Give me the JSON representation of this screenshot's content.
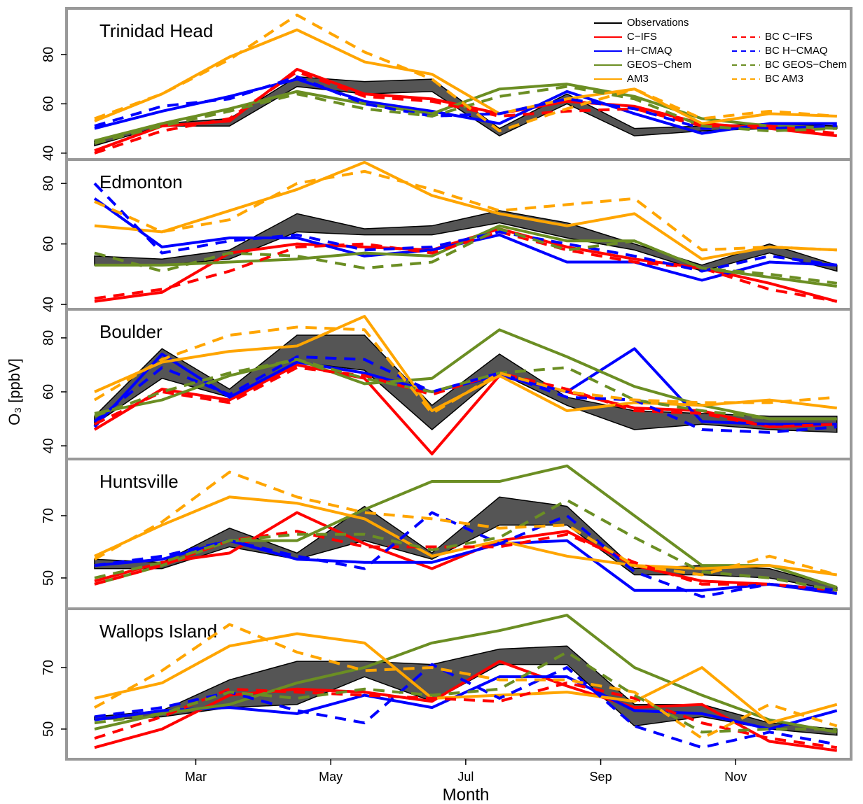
{
  "chart_data": {
    "type": "line",
    "xlabel": "Month",
    "ylabel": "O₃ [ppbV]",
    "x": [
      0.5,
      1.5,
      2.5,
      3.5,
      4.5,
      5.5,
      6.5,
      7.5,
      8.5,
      9.5,
      10.5,
      11.5
    ],
    "xlim": [
      0.085,
      11.71
    ],
    "xticks": [
      {
        "value": 2,
        "label": "Mar"
      },
      {
        "value": 4,
        "label": "May"
      },
      {
        "value": 6,
        "label": "Jul"
      },
      {
        "value": 8,
        "label": "Sep"
      },
      {
        "value": 10,
        "label": "Nov"
      }
    ],
    "legend": "top right",
    "observations": {
      "name": "Observations",
      "color": "#000000",
      "band_color": "#555555"
    },
    "series": [
      {
        "name": "C−IFS",
        "color": "#ff0000",
        "dashed": false
      },
      {
        "name": "H−CMAQ",
        "color": "#0000ff",
        "dashed": false
      },
      {
        "name": "GEOS−Chem",
        "color": "#6b8e23",
        "dashed": false
      },
      {
        "name": "AM3",
        "color": "#ffa500",
        "dashed": false
      },
      {
        "name": "BC C−IFS",
        "color": "#ff0000",
        "dashed": true
      },
      {
        "name": "BC H−CMAQ",
        "color": "#0000ff",
        "dashed": true
      },
      {
        "name": "BC GEOS−Chem",
        "color": "#6b8e23",
        "dashed": true
      },
      {
        "name": "BC AM3",
        "color": "#ffa500",
        "dashed": true
      }
    ],
    "panels": [
      {
        "title": "Trinidad Head",
        "ylim": [
          37.4,
          98.7
        ],
        "yticks": [
          40,
          60,
          80
        ],
        "obs_lower": [
          43,
          51,
          51,
          67,
          64,
          65,
          47,
          60,
          47,
          49,
          50,
          50
        ],
        "obs_upper": [
          45,
          52,
          54,
          71,
          69,
          70,
          50,
          64,
          50,
          51,
          52,
          51
        ],
        "values": [
          [
            41,
            51,
            53,
            74,
            64,
            62,
            56,
            61,
            59,
            52,
            50,
            47
          ],
          [
            50,
            57,
            63,
            70,
            61,
            57,
            52,
            65,
            56,
            48,
            52,
            52
          ],
          [
            45,
            52,
            58,
            65,
            60,
            56,
            66,
            68,
            63,
            54,
            51,
            50
          ],
          [
            53,
            64,
            79,
            90,
            77,
            72,
            56,
            62,
            66,
            52,
            56,
            55
          ],
          [
            40,
            49,
            54,
            73,
            63,
            61,
            55,
            57,
            58,
            51,
            51,
            48
          ],
          [
            51,
            59,
            62,
            71,
            60,
            55,
            56,
            62,
            58,
            50,
            50,
            51
          ],
          [
            44,
            51,
            57,
            64,
            58,
            55,
            63,
            67,
            62,
            51,
            49,
            50
          ],
          [
            54,
            64,
            78,
            96,
            81,
            70,
            49,
            58,
            66,
            54,
            57,
            55
          ]
        ]
      },
      {
        "title": "Edmonton",
        "ylim": [
          38.4,
          87.9
        ],
        "yticks": [
          40,
          60,
          80
        ],
        "obs_lower": [
          53,
          53,
          55,
          64,
          63,
          63,
          67,
          62,
          58,
          51,
          57,
          51
        ],
        "obs_upper": [
          56,
          55,
          58,
          70,
          65,
          66,
          71,
          67,
          60,
          53,
          60,
          53
        ],
        "values": [
          [
            41,
            44,
            57,
            60,
            59,
            58,
            65,
            59,
            55,
            52,
            47,
            41
          ],
          [
            75,
            59,
            62,
            62,
            56,
            58,
            63,
            54,
            54,
            48,
            54,
            53
          ],
          [
            53,
            53,
            54,
            55,
            57,
            56,
            66,
            61,
            61,
            52,
            49,
            46
          ],
          [
            66,
            64,
            71,
            78,
            87,
            76,
            70,
            66,
            70,
            55,
            59,
            58
          ],
          [
            42,
            45,
            51,
            59,
            60,
            57,
            64,
            58,
            54,
            52,
            45,
            41
          ],
          [
            80,
            57,
            61,
            63,
            58,
            59,
            64,
            60,
            56,
            51,
            56,
            53
          ],
          [
            57,
            51,
            57,
            56,
            52,
            54,
            65,
            58,
            61,
            52,
            50,
            47
          ],
          [
            74,
            64,
            68,
            80,
            84,
            78,
            71,
            73,
            75,
            58,
            59,
            58
          ]
        ]
      },
      {
        "title": "Boulder",
        "ylim": [
          35.1,
          90.6
        ],
        "yticks": [
          40,
          60,
          80
        ],
        "obs_lower": [
          48,
          65,
          58,
          71,
          68,
          46,
          67,
          55,
          46,
          48,
          46,
          45
        ],
        "obs_upper": [
          51,
          76,
          61,
          81,
          81,
          55,
          74,
          58,
          53,
          52,
          51,
          51
        ],
        "values": [
          [
            46,
            61,
            57,
            70,
            65,
            37,
            66,
            60,
            54,
            53,
            47,
            48
          ],
          [
            47,
            74,
            58,
            71,
            67,
            60,
            66,
            60,
            76,
            49,
            48,
            48
          ],
          [
            52,
            57,
            66,
            72,
            63,
            65,
            83,
            73,
            62,
            55,
            50,
            50
          ],
          [
            60,
            71,
            75,
            77,
            88,
            53,
            66,
            53,
            56,
            55,
            57,
            54
          ],
          [
            48,
            60,
            56,
            69,
            66,
            59,
            67,
            61,
            53,
            52,
            47,
            48
          ],
          [
            49,
            69,
            59,
            73,
            72,
            60,
            67,
            58,
            57,
            46,
            45,
            47
          ],
          [
            51,
            60,
            67,
            72,
            65,
            60,
            67,
            69,
            57,
            53,
            50,
            50
          ],
          [
            57,
            72,
            81,
            84,
            83,
            52,
            67,
            60,
            57,
            56,
            56,
            58
          ]
        ]
      },
      {
        "title": "Huntsville",
        "ylim": [
          40.1,
          88.2
        ],
        "yticks": [
          50,
          70
        ],
        "obs_lower": [
          53,
          53,
          60,
          56,
          62,
          56,
          67,
          67,
          51,
          51,
          50,
          46
        ],
        "obs_upper": [
          56,
          55,
          66,
          58,
          73,
          58,
          76,
          73,
          53,
          54,
          53,
          47
        ],
        "values": [
          [
            49,
            55,
            58,
            71,
            61,
            53,
            62,
            65,
            54,
            49,
            48,
            46
          ],
          [
            54,
            56,
            62,
            56,
            55,
            55,
            61,
            62,
            46,
            46,
            48,
            45
          ],
          [
            48,
            54,
            62,
            62,
            72,
            81,
            81,
            86,
            70,
            54,
            54,
            47
          ],
          [
            57,
            67,
            76,
            74,
            69,
            57,
            62,
            57,
            54,
            53,
            54,
            51
          ],
          [
            48,
            54,
            62,
            65,
            60,
            60,
            60,
            64,
            55,
            48,
            48,
            46
          ],
          [
            54,
            57,
            62,
            57,
            53,
            71,
            61,
            70,
            52,
            44,
            48,
            46
          ],
          [
            50,
            55,
            62,
            64,
            64,
            59,
            63,
            75,
            63,
            52,
            50,
            46
          ],
          [
            56,
            68,
            84,
            76,
            71,
            69,
            66,
            67,
            54,
            51,
            57,
            51
          ]
        ]
      },
      {
        "title": "Wallops Island",
        "ylim": [
          40.2,
          89.1
        ],
        "yticks": [
          50,
          70
        ],
        "obs_lower": [
          53,
          54,
          57,
          58,
          67,
          59,
          71,
          71,
          51,
          54,
          50,
          48
        ],
        "obs_upper": [
          54,
          56,
          66,
          72,
          72,
          71,
          76,
          77,
          58,
          58,
          52,
          50
        ],
        "values": [
          [
            44,
            50,
            61,
            63,
            62,
            59,
            72,
            64,
            57,
            58,
            46,
            43
          ],
          [
            53,
            56,
            57,
            55,
            61,
            57,
            67,
            67,
            56,
            55,
            50,
            56
          ],
          [
            50,
            55,
            58,
            65,
            70,
            78,
            82,
            87,
            70,
            61,
            53,
            49
          ],
          [
            60,
            65,
            77,
            81,
            78,
            60,
            61,
            62,
            59,
            70,
            52,
            58
          ],
          [
            47,
            54,
            63,
            62,
            61,
            60,
            59,
            65,
            60,
            52,
            47,
            44
          ],
          [
            54,
            57,
            62,
            56,
            52,
            71,
            60,
            70,
            51,
            44,
            49,
            45
          ],
          [
            52,
            55,
            62,
            60,
            63,
            61,
            63,
            75,
            61,
            49,
            50,
            50
          ],
          [
            57,
            69,
            84,
            75,
            69,
            70,
            66,
            66,
            62,
            47,
            58,
            51
          ]
        ]
      }
    ]
  }
}
